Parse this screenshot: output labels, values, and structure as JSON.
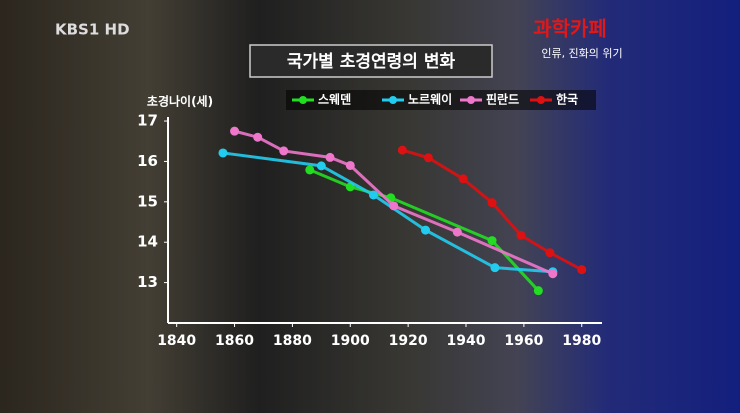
{
  "channel_logo": "KBS1 HD",
  "program_title": "과학카페",
  "program_subtitle": "인류, 진화의 위기",
  "chart_data": {
    "type": "line",
    "title": "국가별 초경연령의 변화",
    "y_label": "초경나이(세)",
    "xlim": [
      1837,
      1987
    ],
    "xticks": [
      1840,
      1860,
      1880,
      1900,
      1920,
      1940,
      1960,
      1980
    ],
    "ylim": [
      12,
      17.1
    ],
    "yticks": [
      13,
      14,
      15,
      16,
      17
    ],
    "series": [
      {
        "name": "스웨덴",
        "color": "#22dd22",
        "x": [
          1886,
          1900,
          1914,
          1949,
          1965
        ],
        "values": [
          15.79,
          15.37,
          15.1,
          14.04,
          12.8
        ]
      },
      {
        "name": "노르웨이",
        "color": "#22ccee",
        "x": [
          1856,
          1890,
          1908,
          1926,
          1950,
          1970
        ],
        "values": [
          16.21,
          15.89,
          15.17,
          14.3,
          13.37,
          13.27
        ]
      },
      {
        "name": "핀란드",
        "color": "#ee77cc",
        "x": [
          1860,
          1868,
          1877,
          1893,
          1900,
          1915,
          1937,
          1970
        ],
        "values": [
          16.75,
          16.6,
          16.26,
          16.1,
          15.9,
          14.9,
          14.25,
          13.22
        ]
      },
      {
        "name": "한국",
        "color": "#dd1111",
        "x": [
          1918,
          1927,
          1939,
          1949,
          1959,
          1969,
          1980
        ],
        "values": [
          16.28,
          16.09,
          15.57,
          14.98,
          14.17,
          13.74,
          13.32
        ]
      }
    ]
  }
}
